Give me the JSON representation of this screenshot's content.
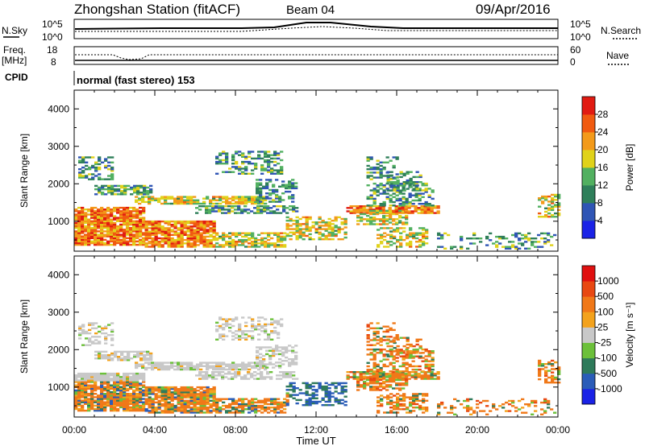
{
  "header": {
    "title": "Zhongshan Station (fitACF)",
    "beam": "Beam 04",
    "date": "09/Apr/2016"
  },
  "top_panels": {
    "nsky_label": "N.Sky",
    "nsearch_label": "N.Search",
    "nsky_ticks": [
      "10^5",
      "10^0"
    ],
    "nsearch_ticks": [
      "10^5",
      "10^0"
    ],
    "freq_label": "Freq.",
    "freq_unit": "[MHz]",
    "freq_ticks": [
      "18",
      "8"
    ],
    "nave_label": "Nave",
    "nave_ticks": [
      "60",
      "0"
    ],
    "cpid_label": "CPID",
    "cpid_value": "normal (fast stereo) 153"
  },
  "chart_data": [
    {
      "type": "heatmap",
      "name": "power",
      "ylabel": "Slant Range [km]",
      "yticks": [
        "4000",
        "3000",
        "2000",
        "1000"
      ],
      "ylim": [
        200,
        4500
      ],
      "xlim_hours": [
        0,
        24
      ],
      "colorbar_label": "Power [dB]",
      "colorbar_ticks": [
        "28",
        "24",
        "20",
        "16",
        "12",
        "8",
        "4"
      ],
      "colorbar_range": [
        0,
        32
      ],
      "colors": [
        "#1a22e6",
        "#2f55b5",
        "#2f7f5a",
        "#52b060",
        "#e0d21a",
        "#f39a1a",
        "#f05a10",
        "#e11b12"
      ]
    },
    {
      "type": "heatmap",
      "name": "velocity",
      "ylabel": "Slant Range [km]",
      "yticks": [
        "4000",
        "3000",
        "2000",
        "1000"
      ],
      "ylim": [
        200,
        4500
      ],
      "xlim_hours": [
        0,
        24
      ],
      "colorbar_label": "Velocity [m s⁻¹]",
      "colorbar_ticks": [
        "1000",
        "500",
        "100",
        "25",
        "-25",
        "-100",
        "-500",
        "-1000"
      ],
      "colors": [
        "#1a22e6",
        "#2a5cb8",
        "#2e7a5a",
        "#6cc03a",
        "#c8c8c8",
        "#f3a21c",
        "#f07818",
        "#e84812",
        "#e01010"
      ]
    }
  ],
  "x_axis": {
    "ticks": [
      "00:00",
      "04:00",
      "08:00",
      "12:00",
      "16:00",
      "20:00",
      "00:00"
    ],
    "label": "Time UT"
  }
}
